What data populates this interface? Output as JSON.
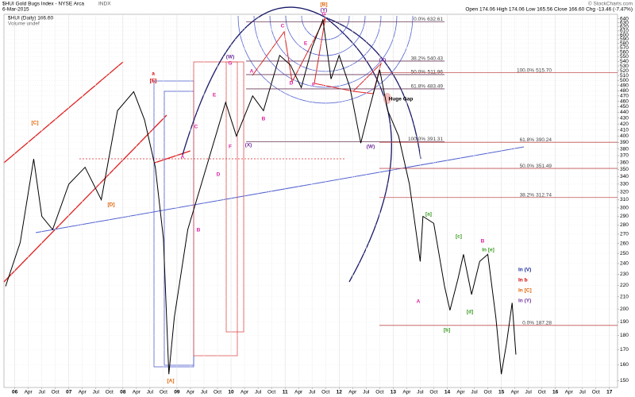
{
  "header": {
    "title": "$HUI Gold Bugs Index - NYSE Arca",
    "exchange": "INDX",
    "date": "6-Mar-2015",
    "quote": "Open 174.06  High 174.06  Low 165.56  Close 166.60  Chg -13.46 (-7.47%)",
    "legend_main": "$HUI (Daily) 166.60",
    "legend_volume": "Volume undef",
    "credit": "© StockCharts.com"
  },
  "chart_data": {
    "type": "line",
    "log_y": true,
    "grid": true,
    "xlim": [
      2005.8,
      2017.15
    ],
    "ylim": [
      146,
      652
    ],
    "x": [
      2005.83,
      2006.1,
      2006.35,
      2006.5,
      2006.7,
      2007.0,
      2007.3,
      2007.6,
      2007.9,
      2008.2,
      2008.4,
      2008.6,
      2008.75,
      2008.85,
      2008.95,
      2009.2,
      2009.5,
      2009.9,
      2010.1,
      2010.4,
      2010.6,
      2010.9,
      2011.1,
      2011.3,
      2011.5,
      2011.7,
      2011.85,
      2012.0,
      2012.2,
      2012.4,
      2012.55,
      2012.75,
      2012.9,
      2013.1,
      2013.3,
      2013.5,
      2013.55,
      2013.75,
      2013.95,
      2014.05,
      2014.2,
      2014.3,
      2014.45,
      2014.6,
      2014.75,
      2014.9,
      2015.0,
      2015.1,
      2015.2,
      2015.27
    ],
    "series": [
      {
        "name": "$HUI",
        "color": "#000000",
        "values": [
          219,
          261,
          365,
          290,
          275,
          330,
          353,
          310,
          443,
          478,
          427,
          353,
          265,
          154,
          193,
          275,
          342,
          458,
          400,
          470,
          443,
          553,
          532,
          486,
          571,
          638,
          503,
          553,
          486,
          389,
          443,
          522,
          443,
          400,
          330,
          242,
          290,
          282,
          219,
          199,
          226,
          249,
          212,
          242,
          249,
          193,
          154,
          175,
          205,
          166.6
        ]
      }
    ],
    "xticks": [
      {
        "value": 2006,
        "label": "06"
      },
      {
        "value": 2006.25,
        "label": "Apr"
      },
      {
        "value": 2006.5,
        "label": "Jul"
      },
      {
        "value": 2006.75,
        "label": "Oct"
      },
      {
        "value": 2007,
        "label": "07"
      },
      {
        "value": 2007.25,
        "label": "Apr"
      },
      {
        "value": 2007.5,
        "label": "Jul"
      },
      {
        "value": 2007.75,
        "label": "Oct"
      },
      {
        "value": 2008,
        "label": "08"
      },
      {
        "value": 2008.25,
        "label": "Apr"
      },
      {
        "value": 2008.5,
        "label": "Jul"
      },
      {
        "value": 2008.75,
        "label": "Oct"
      },
      {
        "value": 2009,
        "label": "09"
      },
      {
        "value": 2009.25,
        "label": "Apr"
      },
      {
        "value": 2009.5,
        "label": "Jul"
      },
      {
        "value": 2009.75,
        "label": "Oct"
      },
      {
        "value": 2010,
        "label": "10"
      },
      {
        "value": 2010.25,
        "label": "Apr"
      },
      {
        "value": 2010.5,
        "label": "Jul"
      },
      {
        "value": 2010.75,
        "label": "Oct"
      },
      {
        "value": 2011,
        "label": "11"
      },
      {
        "value": 2011.25,
        "label": "Apr"
      },
      {
        "value": 2011.5,
        "label": "Jul"
      },
      {
        "value": 2011.75,
        "label": "Oct"
      },
      {
        "value": 2012,
        "label": "12"
      },
      {
        "value": 2012.25,
        "label": "Apr"
      },
      {
        "value": 2012.5,
        "label": "Jul"
      },
      {
        "value": 2012.75,
        "label": "Oct"
      },
      {
        "value": 2013,
        "label": "13"
      },
      {
        "value": 2013.25,
        "label": "Apr"
      },
      {
        "value": 2013.5,
        "label": "Jul"
      },
      {
        "value": 2013.75,
        "label": "Oct"
      },
      {
        "value": 2014,
        "label": "14"
      },
      {
        "value": 2014.25,
        "label": "Apr"
      },
      {
        "value": 2014.5,
        "label": "Jul"
      },
      {
        "value": 2014.75,
        "label": "Oct"
      },
      {
        "value": 2015,
        "label": "15"
      },
      {
        "value": 2015.25,
        "label": "Apr"
      },
      {
        "value": 2015.5,
        "label": "Jul"
      },
      {
        "value": 2015.75,
        "label": "Oct"
      },
      {
        "value": 2016,
        "label": "16"
      },
      {
        "value": 2016.25,
        "label": "Apr"
      },
      {
        "value": 2016.5,
        "label": "Jul"
      },
      {
        "value": 2016.75,
        "label": "Oct"
      },
      {
        "value": 2017,
        "label": "17"
      }
    ],
    "yticks": [
      150,
      160,
      170,
      180,
      190,
      200,
      210,
      220,
      230,
      240,
      250,
      260,
      270,
      280,
      290,
      300,
      310,
      320,
      330,
      340,
      350,
      360,
      370,
      380,
      390,
      400,
      410,
      420,
      430,
      440,
      450,
      460,
      470,
      480,
      490,
      500,
      510,
      520,
      530,
      540,
      550,
      560,
      570,
      580,
      590,
      600,
      610,
      620,
      630,
      640
    ],
    "fib_levels": [
      {
        "pct": "0.0%",
        "value": 632.61,
        "value_label": "632.61",
        "color": "#6b3a5a"
      },
      {
        "pct": "38.2%",
        "value": 540.43,
        "value_label": "540.43",
        "color": "#6b3a5a"
      },
      {
        "pct": "50.0%",
        "value": 511.96,
        "value_label": "511.96",
        "color": "#6b3a5a"
      },
      {
        "pct": "61.8%",
        "value": 483.49,
        "value_label": "483.49",
        "color": "#6b3a5a"
      },
      {
        "pct": "100.0%",
        "value": 391.31,
        "value_label": "391.31",
        "color": "#6b3a5a"
      },
      {
        "pct": "100.0%",
        "value": 515.7,
        "value_label": "515.70",
        "color": "#c05050"
      },
      {
        "pct": "61.8%",
        "value": 390.24,
        "value_label": "390.24",
        "color": "#c05050"
      },
      {
        "pct": "50.0%",
        "value": 351.49,
        "value_label": "351.49",
        "color": "#c05050"
      },
      {
        "pct": "38.2%",
        "value": 312.74,
        "value_label": "312.74",
        "color": "#c05050"
      },
      {
        "pct": "0.0%",
        "value": 187.28,
        "value_label": "187.28",
        "color": "#c05050"
      }
    ],
    "annotations": [
      {
        "text": "[A]",
        "color": "#e06000"
      },
      {
        "text": "[C]",
        "color": "#e06000"
      },
      {
        "text": "[D]",
        "color": "#e06000"
      },
      {
        "text": "a",
        "color": "#d00000"
      },
      {
        "text": "[E]",
        "color": "#d00000"
      },
      {
        "text": "A",
        "color": "#e020a0"
      },
      {
        "text": "B",
        "color": "#e020a0"
      },
      {
        "text": "C",
        "color": "#e020a0"
      },
      {
        "text": "D",
        "color": "#e020a0"
      },
      {
        "text": "E",
        "color": "#e020a0"
      },
      {
        "text": "F",
        "color": "#e020a0"
      },
      {
        "text": "G",
        "color": "#e020a0"
      },
      {
        "text": "(W)",
        "color": "#7030a0"
      },
      {
        "text": "(X)",
        "color": "#7030a0"
      },
      {
        "text": "A",
        "color": "#e020a0"
      },
      {
        "text": "B",
        "color": "#e020a0"
      },
      {
        "text": "C",
        "color": "#e020a0"
      },
      {
        "text": "D",
        "color": "#e020a0"
      },
      {
        "text": "E",
        "color": "#e020a0"
      },
      {
        "text": "F",
        "color": "#e020a0"
      },
      {
        "text": "G",
        "color": "#e020a0"
      },
      {
        "text": "[B]",
        "color": "#e06000"
      },
      {
        "text": "(Y)",
        "color": "#7030a0"
      },
      {
        "text": "(X)",
        "color": "#7030a0"
      },
      {
        "text": "(W)",
        "color": "#7030a0"
      },
      {
        "text": "Huge Gap",
        "color": "#000000"
      },
      {
        "text": "[a]",
        "color": "#3a9a20"
      },
      {
        "text": "A",
        "color": "#e020a0"
      },
      {
        "text": "[b]",
        "color": "#3a9a20"
      },
      {
        "text": "[c]",
        "color": "#3a9a20"
      },
      {
        "text": "[d]",
        "color": "#3a9a20"
      },
      {
        "text": "B",
        "color": "#e020a0"
      },
      {
        "text": "In [e]",
        "color": "#3a9a20"
      },
      {
        "text": "In (V)",
        "color": "#1a2a9a"
      },
      {
        "text": "In b",
        "color": "#d00000"
      },
      {
        "text": "In [C]",
        "color": "#e06000"
      },
      {
        "text": "In (Y)",
        "color": "#7030a0"
      }
    ]
  }
}
